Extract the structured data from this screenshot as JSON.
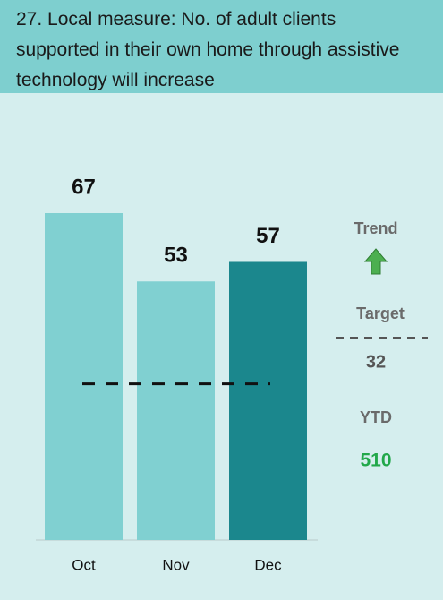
{
  "chart_data": {
    "type": "bar",
    "title": "27. Local measure: No. of adult clients supported in their own home through assistive technology will increase",
    "categories": [
      "Oct",
      "Nov",
      "Dec"
    ],
    "values": [
      67,
      53,
      57
    ],
    "colors": [
      "#80d0d1",
      "#80d0d1",
      "#1b878d"
    ],
    "target_label": "Target",
    "target": 32,
    "trend_label": "Trend",
    "ytd_label": "YTD",
    "ytd": 510
  }
}
